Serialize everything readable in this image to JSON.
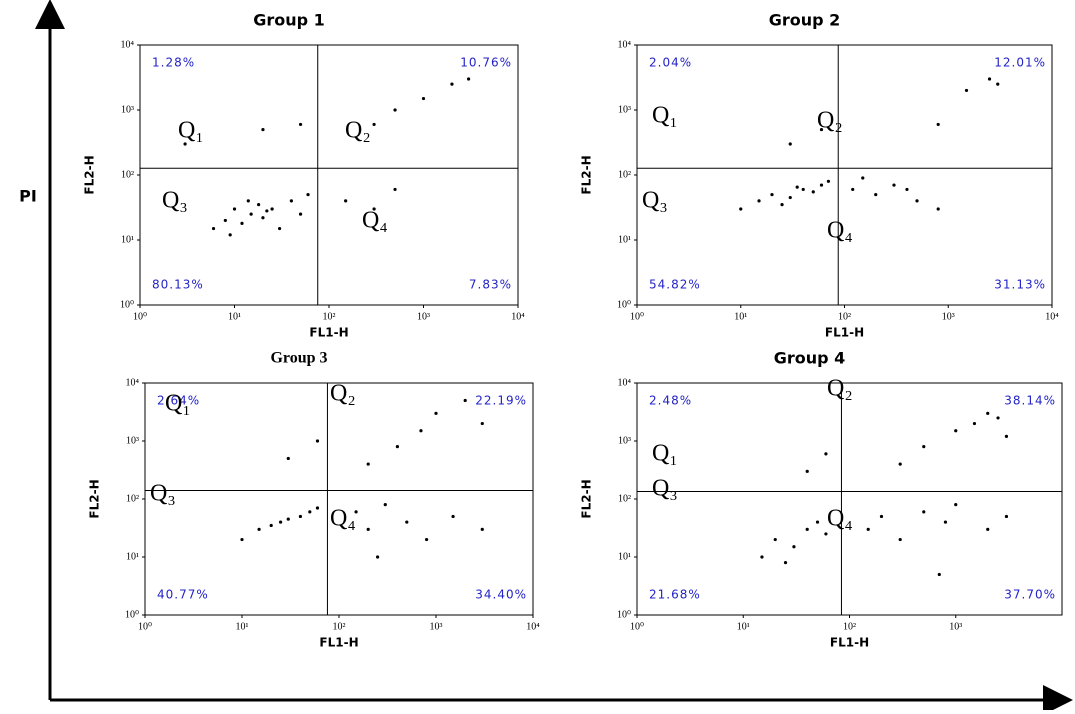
{
  "figure": {
    "y_label": "PI"
  },
  "chart_data": [
    {
      "type": "scatter",
      "title": "Group 1",
      "x_label": "FL1-H",
      "y_label": "FL2-H",
      "xscale": "log",
      "yscale": "log",
      "xlim": [
        1,
        10000
      ],
      "ylim": [
        1,
        10000
      ],
      "xticks": [
        {
          "value": 1,
          "label": "10⁰"
        },
        {
          "value": 10,
          "label": "10¹"
        },
        {
          "value": 100,
          "label": "10²"
        },
        {
          "value": 1000,
          "label": "10³"
        },
        {
          "value": 10000,
          "label": "10⁴"
        }
      ],
      "yticks": [
        {
          "value": 1,
          "label": "10⁰"
        },
        {
          "value": 10,
          "label": "10¹"
        },
        {
          "value": 100,
          "label": "10²"
        },
        {
          "value": 1000,
          "label": "10³"
        },
        {
          "value": 10000,
          "label": "10⁴"
        }
      ],
      "gate_x": 76,
      "gate_y": 127,
      "quadrant_names": [
        "Q₁",
        "Q₂",
        "Q₃",
        "Q₄"
      ],
      "quadrant_labels": [
        "1.28%",
        "10.76%",
        "80.13%",
        "7.83%"
      ],
      "color": "#000000",
      "label_color": "#2323c8",
      "x": [
        6,
        8,
        10,
        12,
        15,
        18,
        20,
        25,
        30,
        40,
        50,
        60,
        9,
        14,
        22,
        150,
        300,
        500,
        300,
        500,
        1000,
        2000,
        3000,
        20,
        50,
        3
      ],
      "y": [
        15,
        20,
        30,
        18,
        25,
        35,
        22,
        30,
        15,
        40,
        25,
        50,
        12,
        40,
        28,
        40,
        30,
        60,
        600,
        1000,
        1500,
        2500,
        3000,
        500,
        600,
        300
      ]
    },
    {
      "type": "scatter",
      "title": "Group 2",
      "x_label": "FL1-H",
      "y_label": "FL2-H",
      "xscale": "log",
      "yscale": "log",
      "xlim": [
        1,
        10000
      ],
      "ylim": [
        1,
        10000
      ],
      "xticks": [
        {
          "value": 1,
          "label": "10⁰"
        },
        {
          "value": 10,
          "label": "10¹"
        },
        {
          "value": 100,
          "label": "10²"
        },
        {
          "value": 1000,
          "label": "10³"
        },
        {
          "value": 10000,
          "label": "10⁴"
        }
      ],
      "yticks": [
        {
          "value": 1,
          "label": "10⁰"
        },
        {
          "value": 10,
          "label": "10¹"
        },
        {
          "value": 100,
          "label": "10²"
        },
        {
          "value": 1000,
          "label": "10³"
        },
        {
          "value": 10000,
          "label": "10⁴"
        }
      ],
      "gate_x": 87,
      "gate_y": 127,
      "quadrant_names": [
        "Q₁",
        "Q₂",
        "Q₃",
        "Q₄"
      ],
      "quadrant_labels": [
        "2.04%",
        "12.01%",
        "54.82%",
        "31.13%"
      ],
      "color": "#000000",
      "label_color": "#2323c8",
      "x": [
        10,
        15,
        20,
        30,
        40,
        50,
        60,
        70,
        25,
        35,
        120,
        200,
        300,
        500,
        800,
        150,
        400,
        1500,
        2500,
        3000,
        800,
        30,
        60
      ],
      "y": [
        30,
        40,
        50,
        45,
        60,
        55,
        70,
        80,
        35,
        65,
        60,
        50,
        70,
        40,
        30,
        90,
        60,
        2000,
        3000,
        2500,
        600,
        300,
        500
      ]
    },
    {
      "type": "scatter",
      "title": "Group 3",
      "x_label": "FL1-H",
      "y_label": "FL2-H",
      "xscale": "log",
      "yscale": "log",
      "xlim": [
        1,
        10000
      ],
      "ylim": [
        1,
        10000
      ],
      "xticks": [
        {
          "value": 1,
          "label": "10⁰"
        },
        {
          "value": 10,
          "label": "10¹"
        },
        {
          "value": 100,
          "label": "10²"
        },
        {
          "value": 1000,
          "label": "10³"
        },
        {
          "value": 10000,
          "label": "10⁴"
        }
      ],
      "yticks": [
        {
          "value": 1,
          "label": "10⁰"
        },
        {
          "value": 10,
          "label": "10¹"
        },
        {
          "value": 100,
          "label": "10²"
        },
        {
          "value": 1000,
          "label": "10³"
        },
        {
          "value": 10000,
          "label": "10⁴"
        }
      ],
      "gate_x": 76,
      "gate_y": 140,
      "quadrant_names": [
        "Q₁",
        "Q₂",
        "Q₃",
        "Q₄"
      ],
      "quadrant_labels": [
        "2.64%",
        "22.19%",
        "40.77%",
        "34.40%"
      ],
      "color": "#000000",
      "label_color": "#2323c8",
      "x": [
        10,
        15,
        20,
        25,
        30,
        40,
        50,
        60,
        150,
        200,
        300,
        500,
        800,
        1500,
        3000,
        200,
        400,
        700,
        1000,
        2000,
        3000,
        30,
        60,
        250
      ],
      "y": [
        20,
        30,
        35,
        40,
        45,
        50,
        60,
        70,
        60,
        30,
        80,
        40,
        20,
        50,
        30,
        400,
        800,
        1500,
        3000,
        5000,
        2000,
        500,
        1000,
        10
      ]
    },
    {
      "type": "scatter",
      "title": "Group 4",
      "x_label": "FL1-H",
      "y_label": "FL2-H",
      "xscale": "log",
      "yscale": "log",
      "xlim": [
        1,
        10000
      ],
      "ylim": [
        1,
        10000
      ],
      "xticks": [
        {
          "value": 1,
          "label": "10⁰"
        },
        {
          "value": 10,
          "label": "10¹"
        },
        {
          "value": 100,
          "label": "10²"
        },
        {
          "value": 1000,
          "label": "10³"
        }
      ],
      "yticks": [
        {
          "value": 1,
          "label": "10⁰"
        },
        {
          "value": 10,
          "label": "10¹"
        },
        {
          "value": 100,
          "label": "10²"
        },
        {
          "value": 1000,
          "label": "10³"
        },
        {
          "value": 10000,
          "label": "10⁴"
        }
      ],
      "gate_x": 84,
      "gate_y": 135,
      "quadrant_names": [
        "Q₁",
        "Q₂",
        "Q₃",
        "Q₄"
      ],
      "quadrant_labels": [
        "2.48%",
        "38.14%",
        "21.68%",
        "37.70%"
      ],
      "color": "#000000",
      "label_color": "#2323c8",
      "x": [
        15,
        20,
        30,
        40,
        50,
        60,
        25,
        150,
        200,
        300,
        500,
        800,
        1000,
        2000,
        3000,
        300,
        500,
        1000,
        1500,
        2000,
        2500,
        3000,
        40,
        60,
        700
      ],
      "y": [
        10,
        20,
        15,
        30,
        40,
        25,
        8,
        30,
        50,
        20,
        60,
        40,
        80,
        30,
        50,
        400,
        800,
        1500,
        2000,
        3000,
        2500,
        1200,
        300,
        600,
        5
      ]
    }
  ]
}
